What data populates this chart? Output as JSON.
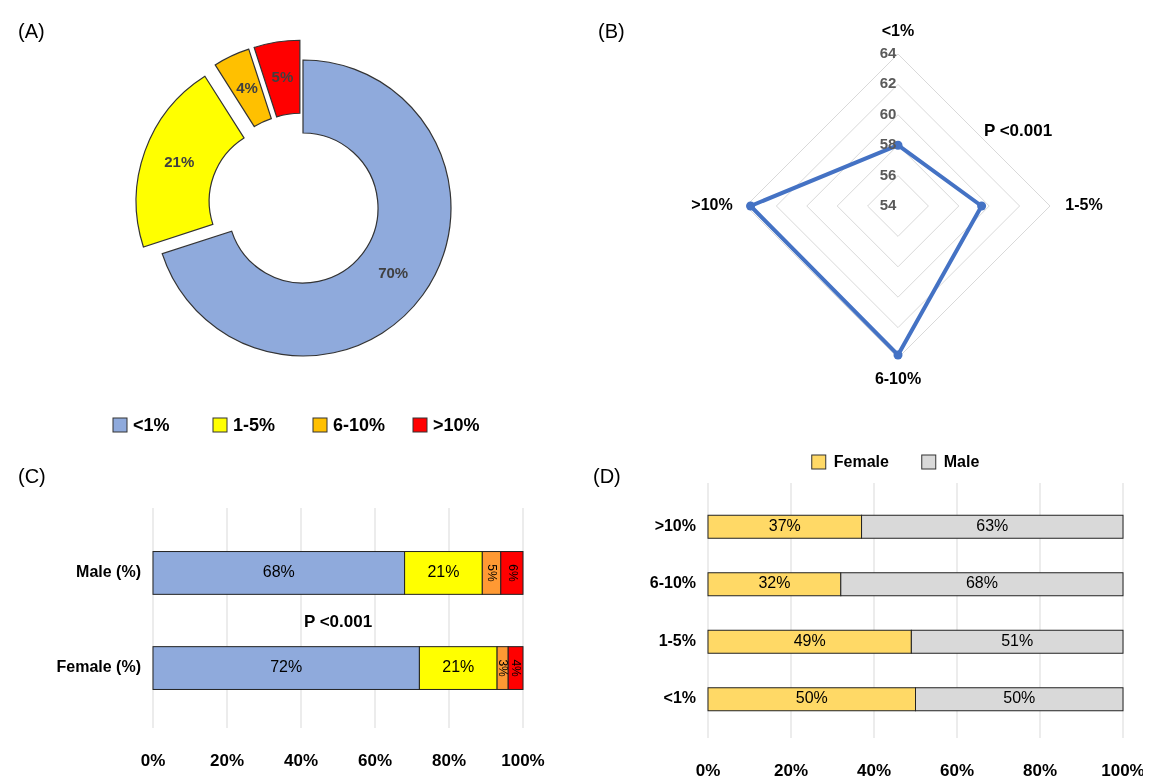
{
  "chart_data": [
    {
      "type": "donut",
      "title": "(A)",
      "categories": [
        "<1%",
        "1-5%",
        "6-10%",
        ">10%"
      ],
      "values": [
        70,
        21,
        4,
        5
      ],
      "colors": [
        "#8faadc",
        "#ffff00",
        "#ffc000",
        "#ff0000"
      ],
      "value_labels": [
        "70%",
        "21%",
        "4%",
        "5%"
      ],
      "legend": "bottom"
    },
    {
      "type": "radar",
      "title": "(B)",
      "categories": [
        "<1%",
        "1-5%",
        "6-10%",
        ">10%"
      ],
      "series": [
        {
          "color": "#4472c4",
          "values": [
            58,
            59.5,
            63.8,
            63.7
          ]
        }
      ],
      "ylim": [
        54,
        64
      ],
      "yticks": [
        54,
        56,
        58,
        60,
        62,
        64
      ],
      "marker": "circle",
      "grid": true,
      "annotations": [
        "P <0.001"
      ]
    },
    {
      "type": "bar",
      "title": "(C)",
      "orientation": "horizontal",
      "stacked": true,
      "categories": [
        "Male (%)",
        "Female (%)"
      ],
      "series": [
        {
          "color": "#8faadc",
          "values": [
            68,
            72
          ],
          "value_labels": [
            "68%",
            "72%"
          ]
        },
        {
          "color": "#ffff00",
          "values": [
            21,
            21
          ],
          "value_labels": [
            "21%",
            "21%"
          ]
        },
        {
          "color": "#ff9933",
          "values": [
            5,
            3
          ],
          "value_labels": [
            "5%",
            "3%"
          ]
        },
        {
          "color": "#ff0000",
          "values": [
            6,
            4
          ],
          "value_labels": [
            "6%",
            "4%"
          ]
        }
      ],
      "xlim": [
        0,
        100
      ],
      "xticks": [
        {
          "value": 0,
          "label": "0%"
        },
        {
          "value": 20,
          "label": "20%"
        },
        {
          "value": 40,
          "label": "40%"
        },
        {
          "value": 60,
          "label": "60%"
        },
        {
          "value": 80,
          "label": "80%"
        },
        {
          "value": 100,
          "label": "100%"
        }
      ],
      "grid": "x",
      "annotations": [
        "P <0.001"
      ]
    },
    {
      "type": "bar",
      "title": "(D)",
      "orientation": "horizontal",
      "stacked": true,
      "categories": [
        ">10%",
        "6-10%",
        "1-5%",
        "<1%"
      ],
      "series": [
        {
          "name": "Female",
          "color": "#ffd966",
          "values": [
            37,
            32,
            49,
            50
          ],
          "value_labels": [
            "37%",
            "32%",
            "49%",
            "50%"
          ]
        },
        {
          "name": "Male",
          "color": "#d9d9d9",
          "values": [
            63,
            68,
            51,
            50
          ],
          "value_labels": [
            "63%",
            "68%",
            "51%",
            "50%"
          ]
        }
      ],
      "xlim": [
        0,
        100
      ],
      "xticks": [
        {
          "value": 0,
          "label": "0%"
        },
        {
          "value": 20,
          "label": "20%"
        },
        {
          "value": 40,
          "label": "40%"
        },
        {
          "value": 60,
          "label": "60%"
        },
        {
          "value": 80,
          "label": "80%"
        },
        {
          "value": 100,
          "label": "100%"
        }
      ],
      "grid": "x",
      "legend": "top"
    }
  ]
}
